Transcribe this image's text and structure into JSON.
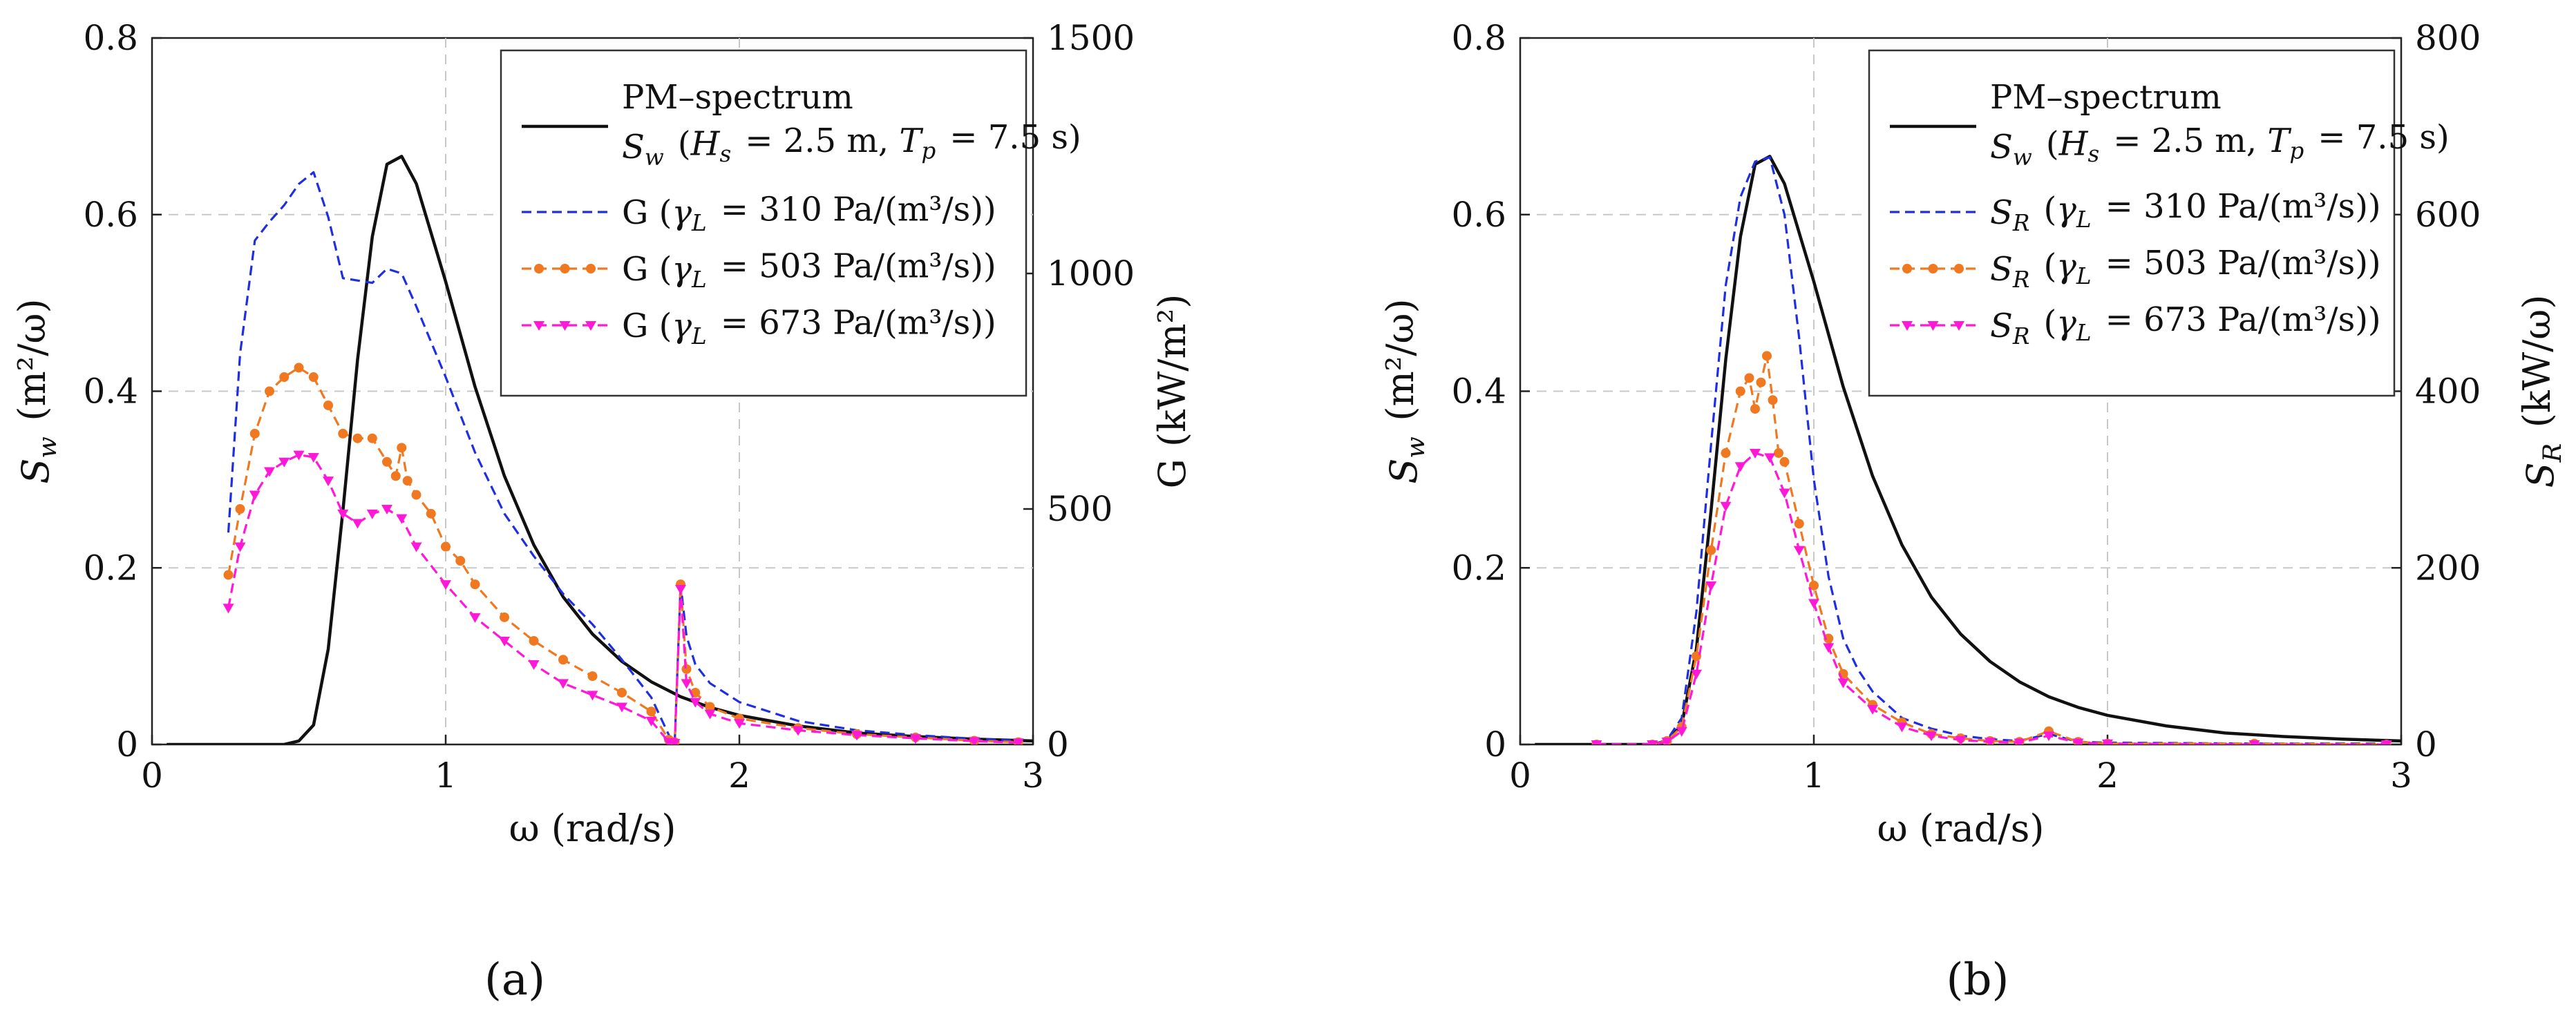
{
  "figure": {
    "panels": [
      "(a)",
      "(b)"
    ]
  },
  "chart_data": [
    {
      "type": "line",
      "panel_label": "(a)",
      "xlabel": "ω (rad/s)",
      "ylabel": "S_w (m²/ω)",
      "ylabel_right": "G (kW/m²)",
      "xlim": [
        0,
        3
      ],
      "ylim": [
        0,
        0.8
      ],
      "ylim_right": [
        0,
        1500
      ],
      "x_ticks": [
        "0",
        "1",
        "2",
        "3"
      ],
      "y_ticks": [
        "0",
        "0.2",
        "0.4",
        "0.6",
        "0.8"
      ],
      "y_right_ticks": [
        "0",
        "500",
        "1000",
        "1500"
      ],
      "grid": true,
      "legend_position": "top-right",
      "series": [
        {
          "name": "PM–spectrum S_w (H_s = 2.5 m, T_p = 7.5 s)",
          "legend": [
            "PM–spectrum",
            "S_w (H_s = 2.5 m, T_p = 7.5 s)"
          ],
          "axis": "left",
          "color": "#111111",
          "style": "solid",
          "x": [
            0.05,
            0.45,
            0.5,
            0.55,
            0.6,
            0.65,
            0.7,
            0.75,
            0.8,
            0.85,
            0.9,
            1.0,
            1.1,
            1.2,
            1.3,
            1.4,
            1.5,
            1.6,
            1.7,
            1.8,
            1.9,
            2.0,
            2.2,
            2.4,
            2.6,
            2.8,
            3.0
          ],
          "y": [
            0,
            0,
            0.004,
            0.022,
            0.108,
            0.265,
            0.436,
            0.575,
            0.657,
            0.666,
            0.635,
            0.524,
            0.405,
            0.304,
            0.226,
            0.167,
            0.125,
            0.094,
            0.071,
            0.054,
            0.042,
            0.033,
            0.021,
            0.013,
            0.009,
            0.006,
            0.004
          ]
        },
        {
          "name": "G (γ_L = 310 Pa/(m³/s))",
          "axis": "right",
          "color": "#1f2fe0",
          "style": "dashed",
          "x": [
            0.26,
            0.3,
            0.35,
            0.4,
            0.45,
            0.5,
            0.55,
            0.6,
            0.65,
            0.7,
            0.75,
            0.8,
            0.85,
            0.9,
            1.0,
            1.1,
            1.2,
            1.3,
            1.4,
            1.5,
            1.6,
            1.7,
            1.76,
            1.78,
            1.8,
            1.82,
            1.85,
            1.9,
            2.0,
            2.2,
            2.4,
            2.6,
            2.8,
            2.95
          ],
          "y": [
            450,
            830,
            1070,
            1110,
            1145,
            1190,
            1215,
            1120,
            990,
            985,
            980,
            1010,
            1000,
            930,
            780,
            620,
            490,
            400,
            320,
            255,
            180,
            100,
            20,
            5,
            340,
            230,
            170,
            130,
            90,
            50,
            30,
            20,
            12,
            8
          ]
        },
        {
          "name": "G (γ_L = 503 Pa/(m³/s))",
          "axis": "right",
          "color": "#f07820",
          "style": "dashed-marker-circle",
          "x": [
            0.26,
            0.3,
            0.35,
            0.4,
            0.45,
            0.5,
            0.55,
            0.6,
            0.65,
            0.7,
            0.75,
            0.8,
            0.83,
            0.85,
            0.87,
            0.9,
            0.95,
            1.0,
            1.05,
            1.1,
            1.2,
            1.3,
            1.4,
            1.5,
            1.6,
            1.7,
            1.76,
            1.78,
            1.8,
            1.82,
            1.85,
            1.9,
            2.0,
            2.2,
            2.4,
            2.6,
            2.8,
            2.95
          ],
          "y": [
            360,
            500,
            660,
            750,
            780,
            800,
            780,
            720,
            660,
            650,
            650,
            600,
            570,
            630,
            560,
            530,
            490,
            420,
            390,
            340,
            270,
            220,
            180,
            145,
            110,
            70,
            10,
            5,
            340,
            160,
            110,
            80,
            55,
            35,
            22,
            15,
            8,
            5
          ]
        },
        {
          "name": "G (γ_L = 673 Pa/(m³/s))",
          "axis": "right",
          "color": "#ff18d8",
          "style": "dashed-marker-triangle",
          "x": [
            0.26,
            0.3,
            0.35,
            0.4,
            0.45,
            0.5,
            0.55,
            0.6,
            0.65,
            0.7,
            0.75,
            0.8,
            0.85,
            0.9,
            1.0,
            1.1,
            1.2,
            1.3,
            1.4,
            1.5,
            1.6,
            1.7,
            1.76,
            1.78,
            1.8,
            1.82,
            1.85,
            1.9,
            2.0,
            2.2,
            2.4,
            2.6,
            2.8,
            2.95
          ],
          "y": [
            290,
            420,
            530,
            580,
            600,
            615,
            610,
            560,
            490,
            470,
            490,
            500,
            480,
            420,
            340,
            270,
            220,
            170,
            130,
            105,
            80,
            50,
            5,
            3,
            330,
            130,
            90,
            65,
            45,
            30,
            20,
            13,
            7,
            4
          ]
        }
      ]
    },
    {
      "type": "line",
      "panel_label": "(b)",
      "xlabel": "ω (rad/s)",
      "ylabel": "S_w (m²/ω)",
      "ylabel_right": "S_R (kW/ω)",
      "xlim": [
        0,
        3
      ],
      "ylim": [
        0,
        0.8
      ],
      "ylim_right": [
        0,
        800
      ],
      "x_ticks": [
        "0",
        "1",
        "2",
        "3"
      ],
      "y_ticks": [
        "0",
        "0.2",
        "0.4",
        "0.6",
        "0.8"
      ],
      "y_right_ticks": [
        "0",
        "200",
        "400",
        "600",
        "800"
      ],
      "grid": true,
      "legend_position": "top-right",
      "series": [
        {
          "name": "PM–spectrum S_w (H_s = 2.5 m, T_p = 7.5 s)",
          "legend": [
            "PM–spectrum",
            "S_w (H_s = 2.5 m, T_p = 7.5 s)"
          ],
          "axis": "left",
          "color": "#111111",
          "style": "solid",
          "x": [
            0.05,
            0.45,
            0.5,
            0.55,
            0.6,
            0.65,
            0.7,
            0.75,
            0.8,
            0.85,
            0.9,
            1.0,
            1.1,
            1.2,
            1.3,
            1.4,
            1.5,
            1.6,
            1.7,
            1.8,
            1.9,
            2.0,
            2.2,
            2.4,
            2.6,
            2.8,
            3.0
          ],
          "y": [
            0,
            0,
            0.004,
            0.022,
            0.108,
            0.265,
            0.436,
            0.575,
            0.657,
            0.666,
            0.635,
            0.524,
            0.405,
            0.304,
            0.226,
            0.167,
            0.125,
            0.094,
            0.071,
            0.054,
            0.042,
            0.033,
            0.021,
            0.013,
            0.009,
            0.006,
            0.004
          ]
        },
        {
          "name": "S_R (γ_L = 310 Pa/(m³/s))",
          "axis": "right",
          "color": "#1f2fe0",
          "style": "dashed",
          "x": [
            0.26,
            0.45,
            0.5,
            0.55,
            0.6,
            0.65,
            0.7,
            0.75,
            0.8,
            0.85,
            0.9,
            0.95,
            1.0,
            1.05,
            1.1,
            1.15,
            1.2,
            1.3,
            1.4,
            1.5,
            1.6,
            1.7,
            1.8,
            1.9,
            2.0,
            2.5,
            2.95
          ],
          "y": [
            0,
            0,
            5,
            30,
            150,
            340,
            520,
            620,
            660,
            665,
            600,
            460,
            300,
            190,
            120,
            85,
            60,
            30,
            18,
            10,
            6,
            4,
            12,
            3,
            2,
            1,
            1
          ]
        },
        {
          "name": "S_R (γ_L = 503 Pa/(m³/s))",
          "axis": "right",
          "color": "#f07820",
          "style": "dashed-marker-circle",
          "x": [
            0.26,
            0.45,
            0.5,
            0.55,
            0.6,
            0.65,
            0.7,
            0.75,
            0.78,
            0.8,
            0.82,
            0.84,
            0.86,
            0.88,
            0.9,
            0.95,
            1.0,
            1.05,
            1.1,
            1.2,
            1.3,
            1.4,
            1.5,
            1.6,
            1.7,
            1.8,
            1.9,
            2.0,
            2.5,
            2.95
          ],
          "y": [
            0,
            0,
            4,
            20,
            100,
            220,
            330,
            400,
            415,
            380,
            410,
            440,
            390,
            330,
            320,
            250,
            180,
            120,
            80,
            45,
            25,
            12,
            7,
            4,
            3,
            15,
            3,
            1,
            1,
            0
          ]
        },
        {
          "name": "S_R (γ_L = 673 Pa/(m³/s))",
          "axis": "right",
          "color": "#ff18d8",
          "style": "dashed-marker-triangle",
          "x": [
            0.26,
            0.45,
            0.5,
            0.55,
            0.6,
            0.65,
            0.7,
            0.75,
            0.8,
            0.85,
            0.9,
            0.95,
            1.0,
            1.05,
            1.1,
            1.2,
            1.3,
            1.4,
            1.5,
            1.6,
            1.7,
            1.8,
            1.9,
            2.0,
            2.5,
            2.95
          ],
          "y": [
            0,
            0,
            3,
            15,
            80,
            180,
            270,
            315,
            330,
            325,
            285,
            220,
            160,
            110,
            70,
            40,
            20,
            10,
            5,
            3,
            2,
            10,
            2,
            1,
            0,
            0
          ]
        }
      ]
    }
  ]
}
